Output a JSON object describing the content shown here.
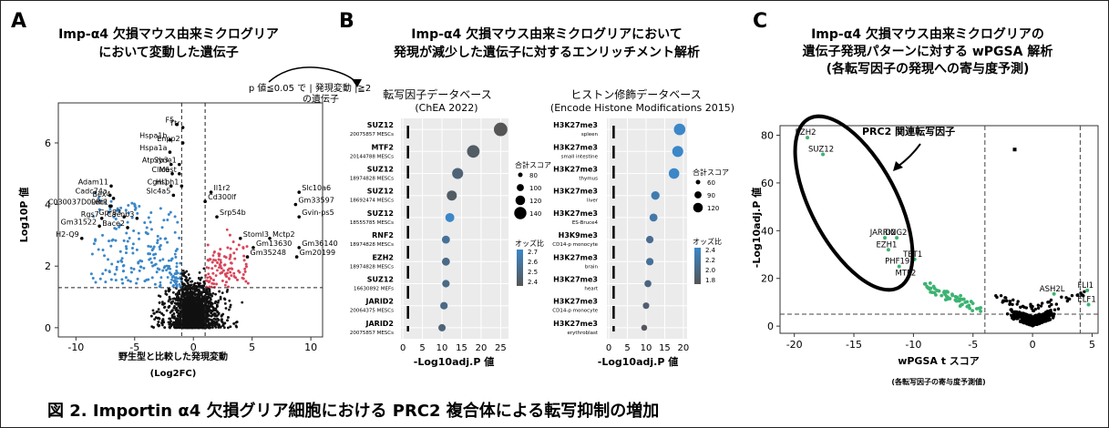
{
  "panels": {
    "a": {
      "letter": "A",
      "title_line1": "Imp-α4 欠損マウス由来ミクログリア",
      "title_line2": "において変動した遺伝子",
      "xlabel1": "野生型と比較した発現変動",
      "xlabel2": "(Log2FC)",
      "ylabel": "Log10P 値",
      "annotation_line1": "p 値≦0.05 で | 発現変動 |≧2",
      "annotation_line2": "の遺伝子"
    },
    "b": {
      "letter": "B",
      "title_line1": "Imp-α4 欠損マウス由来ミクログリアにおいて",
      "title_line2": "発現が減少した遺伝子に対するエンリッチメント解析",
      "left_title1": "転写因子データベース",
      "left_title2": "(ChEA 2022)",
      "right_title1": "ヒストン修飾データベース",
      "right_title2": "(Encode Histone Modifications 2015)",
      "xlabel": "-Log10adj.P 値",
      "legend_size_title": "合計スコア",
      "legend_color_title": "オッズ比"
    },
    "c": {
      "letter": "C",
      "title_line1": "Imp-α4 欠損マウス由来ミクログリアの",
      "title_line2": "遺伝子発現パターンに対する wPGSA 解析",
      "title_line3": "(各転写因子の発現への寄与度予測)",
      "xlabel1": "wPGSA t スコア",
      "xlabel2": "(各転写因子の寄与度予測値)",
      "ylabel": "-Log10adj.P 値",
      "callout": "PRC2 関連転写因子"
    }
  },
  "caption": "図 2. Importin α4 欠損グリア細胞における PRC2 複合体による転写抑制の増加",
  "colors": {
    "up": "#d9465a",
    "down": "#3b87c8",
    "ns": "#111111",
    "prc2": "#3cb371",
    "panel_bg": "#ebebeb"
  },
  "chart_data": [
    {
      "type": "scatter",
      "name": "volcano",
      "xlabel": "野生型と比較した発現変動 (Log2FC)",
      "ylabel": "Log10P 値",
      "xlim": [
        -11.5,
        11
      ],
      "ylim": [
        -0.3,
        7.3
      ],
      "xticks": [
        -10,
        -5,
        0,
        5,
        10
      ],
      "yticks": [
        0,
        2,
        4,
        6
      ],
      "vlines": [
        -1,
        1
      ],
      "hline": 1.3,
      "labels": [
        {
          "gene": "F5",
          "x": -1.4,
          "y": 6.6
        },
        {
          "gene": "Ttr",
          "x": -0.9,
          "y": 6.5
        },
        {
          "gene": "Hspa1b",
          "x": -2.0,
          "y": 6.1
        },
        {
          "gene": "Enpp2",
          "x": -0.9,
          "y": 6.0
        },
        {
          "gene": "Hspa1a",
          "x": -2.0,
          "y": 5.7
        },
        {
          "gene": "Atp2b3",
          "x": -1.9,
          "y": 5.3
        },
        {
          "gene": "Syne1",
          "x": -1.2,
          "y": 5.3
        },
        {
          "gene": "Clic6",
          "x": -1.8,
          "y": 5.0
        },
        {
          "gene": "Mest",
          "x": -1.2,
          "y": 5.0
        },
        {
          "gene": "Cgnl1",
          "x": -1.9,
          "y": 4.6
        },
        {
          "gene": "Hsph1",
          "x": -1.0,
          "y": 4.6
        },
        {
          "gene": "Slc4a5",
          "x": -1.7,
          "y": 4.3
        },
        {
          "gene": "Il1r2",
          "x": 1.5,
          "y": 4.4
        },
        {
          "gene": "Cd300lf",
          "x": 1.0,
          "y": 4.1
        },
        {
          "gene": "Adam11",
          "x": -7.0,
          "y": 4.6
        },
        {
          "gene": "Cadc74a",
          "x": -7.1,
          "y": 4.3
        },
        {
          "gene": "Bex4",
          "x": -6.8,
          "y": 4.2
        },
        {
          "gene": "C030037D09Rik",
          "x": -7.1,
          "y": 3.95
        },
        {
          "gene": "Ldc1",
          "x": -7.0,
          "y": 3.95
        },
        {
          "gene": "Gpr83",
          "x": -5.9,
          "y": 3.6
        },
        {
          "gene": "Rgs7",
          "x": -7.8,
          "y": 3.55
        },
        {
          "gene": "Cacnb3",
          "x": -4.8,
          "y": 3.55
        },
        {
          "gene": "Gm31522",
          "x": -8.0,
          "y": 3.3
        },
        {
          "gene": "Bace2",
          "x": -5.6,
          "y": 3.25
        },
        {
          "gene": "H2-Q9",
          "x": -9.5,
          "y": 2.9
        },
        {
          "gene": "Slc10a6",
          "x": 9.0,
          "y": 4.4
        },
        {
          "gene": "Gm33597",
          "x": 8.7,
          "y": 4.0
        },
        {
          "gene": "Srp54b",
          "x": 2.0,
          "y": 3.6
        },
        {
          "gene": "Gvin-ps5",
          "x": 9.0,
          "y": 3.6
        },
        {
          "gene": "Stoml3",
          "x": 4.0,
          "y": 2.9
        },
        {
          "gene": "Mctp2",
          "x": 6.5,
          "y": 2.9
        },
        {
          "gene": "Gm13630",
          "x": 5.1,
          "y": 2.6
        },
        {
          "gene": "Gm36140",
          "x": 9.0,
          "y": 2.6
        },
        {
          "gene": "Gm35248",
          "x": 4.6,
          "y": 2.3
        },
        {
          "gene": "Gm20199",
          "x": 8.8,
          "y": 2.3
        }
      ]
    },
    {
      "type": "scatter",
      "name": "ChEA 2022 enrichment",
      "xlabel": "-Log10adj.P 値",
      "xlim": [
        -0.5,
        27
      ],
      "xticks": [
        0,
        5,
        10,
        15,
        20,
        25
      ],
      "threshold": 1.3,
      "legend_size": [
        80,
        100,
        120,
        140
      ],
      "legend_color": [
        "2.7",
        "2.6",
        "2.5",
        "2.4"
      ],
      "points": [
        {
          "term": "SUZ12",
          "sub": "20075857 MESCs",
          "x": 25,
          "score": 140,
          "odds": 2.4
        },
        {
          "term": "MTF2",
          "sub": "20144788 MESCs",
          "x": 18,
          "score": 130,
          "odds": 2.45
        },
        {
          "term": "SUZ12",
          "sub": "18974828 MESCs",
          "x": 14,
          "score": 115,
          "odds": 2.5
        },
        {
          "term": "SUZ12",
          "sub": "18692474 MESCs",
          "x": 12.5,
          "score": 105,
          "odds": 2.45
        },
        {
          "term": "SUZ12",
          "sub": "18555785 MESCs",
          "x": 12,
          "score": 95,
          "odds": 2.75
        },
        {
          "term": "RNF2",
          "sub": "18974828 MESCs",
          "x": 11,
          "score": 85,
          "odds": 2.6
        },
        {
          "term": "EZH2",
          "sub": "18974828 MESCs",
          "x": 11,
          "score": 85,
          "odds": 2.55
        },
        {
          "term": "SUZ12",
          "sub": "16630892 MEFs",
          "x": 11,
          "score": 80,
          "odds": 2.55
        },
        {
          "term": "JARID2",
          "sub": "20064375 MESCs",
          "x": 10.5,
          "score": 80,
          "odds": 2.55
        },
        {
          "term": "JARID2",
          "sub": "20075857 MESCs",
          "x": 10,
          "score": 78,
          "odds": 2.5
        }
      ]
    },
    {
      "type": "scatter",
      "name": "Encode Histone Modifications 2015 enrichment",
      "xlabel": "-Log10adj.P 値",
      "xlim": [
        -0.5,
        21
      ],
      "xticks": [
        0,
        5,
        10,
        15,
        20
      ],
      "threshold": 1.3,
      "legend_size": [
        60,
        90,
        120
      ],
      "legend_color": [
        "2.4",
        "2.2",
        "2.0",
        "1.8"
      ],
      "points": [
        {
          "term": "H3K27me3",
          "sub": "spleen",
          "x": 19,
          "score": 120,
          "odds": 2.45
        },
        {
          "term": "H3K27me3",
          "sub": "small intestine",
          "x": 18.5,
          "score": 115,
          "odds": 2.45
        },
        {
          "term": "H3K27me3",
          "sub": "thymus",
          "x": 17.5,
          "score": 110,
          "odds": 2.45
        },
        {
          "term": "H3K27me3",
          "sub": "liver",
          "x": 12.5,
          "score": 90,
          "odds": 2.3
        },
        {
          "term": "H3K27me3",
          "sub": "ES-Bruce4",
          "x": 12,
          "score": 85,
          "odds": 2.25
        },
        {
          "term": "H3K9me3",
          "sub": "CD14-p monocyte",
          "x": 11,
          "score": 80,
          "odds": 2.1
        },
        {
          "term": "H3K27me3",
          "sub": "brain",
          "x": 11,
          "score": 80,
          "odds": 2.15
        },
        {
          "term": "H3K27me3",
          "sub": "heart",
          "x": 10.5,
          "score": 75,
          "odds": 2.0
        },
        {
          "term": "H3K27me3",
          "sub": "CD14-p monocyte",
          "x": 10,
          "score": 70,
          "odds": 1.9
        },
        {
          "term": "H3K27me3",
          "sub": "erythroblast",
          "x": 9.5,
          "score": 65,
          "odds": 1.8
        }
      ]
    },
    {
      "type": "scatter",
      "name": "wPGSA",
      "xlabel": "wPGSA t スコア",
      "ylabel": "-Log10adj.P 値",
      "xlim": [
        -21.2,
        5.5
      ],
      "ylim": [
        -3,
        84
      ],
      "xticks": [
        -20,
        -15,
        -10,
        -5,
        0,
        5
      ],
      "yticks": [
        0,
        20,
        40,
        60,
        80
      ],
      "vlines": [
        -4,
        4
      ],
      "hline": 5,
      "labels": [
        {
          "tf": "EZH2",
          "x": -18.9,
          "y": 79
        },
        {
          "tf": "SUZ12",
          "x": -17.6,
          "y": 72
        },
        {
          "tf": "JARID2",
          "x": -12.4,
          "y": 37
        },
        {
          "tf": "RING2",
          "x": -11.4,
          "y": 37
        },
        {
          "tf": "EZH1",
          "x": -12.1,
          "y": 32
        },
        {
          "tf": "TET1",
          "x": -9.9,
          "y": 28
        },
        {
          "tf": "PHF19",
          "x": -11.2,
          "y": 25
        },
        {
          "tf": "MTF2",
          "x": -10.5,
          "y": 20
        },
        {
          "tf": "ASH2L",
          "x": 1.8,
          "y": 13.5
        },
        {
          "tf": "FLI1",
          "x": 4.6,
          "y": 15
        },
        {
          "tf": "ELF1",
          "x": 4.7,
          "y": 9
        }
      ],
      "outlier": {
        "x": -1.5,
        "y": 74
      }
    }
  ]
}
